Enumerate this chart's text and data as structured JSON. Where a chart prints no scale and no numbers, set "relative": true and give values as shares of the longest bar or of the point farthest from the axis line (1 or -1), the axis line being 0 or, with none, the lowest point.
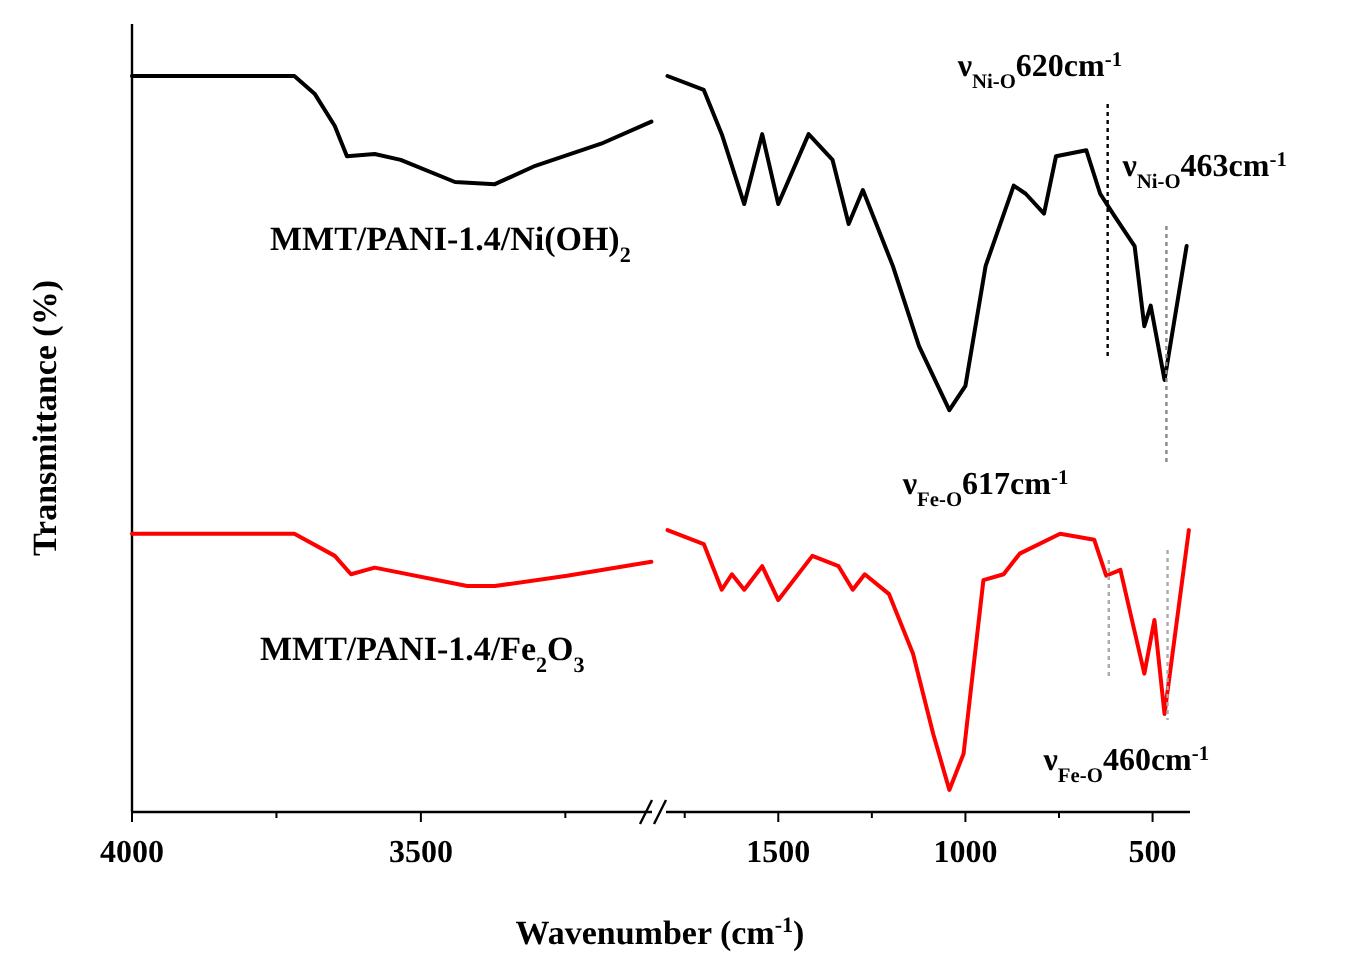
{
  "chart_data": [
    {
      "type": "line",
      "relative": true,
      "ylabel": "Transmittance (%)",
      "xlim": [
        4000,
        3100
      ],
      "xticks": [
        4000,
        3500,
        {
          "value": 3750,
          "label": null
        },
        {
          "value": 3250,
          "label": null
        }
      ],
      "series": [
        {
          "name": "MMT/PANI-1.4/Ni(OH)$_{2}$",
          "color": "#000000",
          "x": [
            4000,
            3850,
            3719,
            3684,
            3649,
            3628,
            3580,
            3535,
            3441,
            3372,
            3302,
            3188,
            3101
          ],
          "values": [
            1.0,
            1.0,
            1.0,
            0.976,
            0.932,
            0.891,
            0.894,
            0.886,
            0.856,
            0.853,
            0.878,
            0.908,
            0.938
          ]
        },
        {
          "name": "MMT/PANI-1.4/Fe$_{2}$O$_{3}$",
          "color": "#ff0000",
          "x": [
            4000,
            3850,
            3719,
            3649,
            3621,
            3580,
            3420,
            3372,
            3247,
            3101
          ],
          "values": [
            0.378,
            0.378,
            0.378,
            0.348,
            0.323,
            0.332,
            0.307,
            0.307,
            0.321,
            0.34
          ]
        }
      ]
    },
    {
      "type": "line",
      "relative": true,
      "xlabel": "Wavenumber (cm$^{-1}$)",
      "xlim": [
        1800,
        400
      ],
      "xticks": [
        1500,
        1000,
        500,
        {
          "value": 1750,
          "label": null
        },
        {
          "value": 1250,
          "label": null
        },
        {
          "value": 750,
          "label": null
        }
      ],
      "ref_lines": [
        {
          "axis": "x",
          "value": 620,
          "label": "ν$_{Ni-O}$620cm$^{-1}$",
          "color": "#000000",
          "line_style": "dotted"
        },
        {
          "axis": "x",
          "value": 463,
          "label": "ν$_{Ni-O}$463cm$^{-1}$",
          "color": "#888888",
          "line_style": "dotted"
        },
        {
          "axis": "x",
          "value": 617,
          "label": "ν$_{Fe-O}$617cm$^{-1}$",
          "color": "#aaaaaa",
          "line_style": "dotted"
        },
        {
          "axis": "x",
          "value": 460,
          "label": "ν$_{Fe-O}$460cm$^{-1}$",
          "color": "#aaaaaa",
          "line_style": "dotted"
        }
      ],
      "series": [
        {
          "color": "#000000",
          "x": [
            1796,
            1699,
            1651,
            1591,
            1543,
            1500,
            1419,
            1355,
            1312,
            1274,
            1194,
            1124,
            1043,
            1000,
            946,
            871,
            839,
            790,
            758,
            677,
            640,
            602,
            548,
            522,
            505,
            468,
            409
          ],
          "values": [
            1.0,
            0.981,
            0.921,
            0.826,
            0.921,
            0.826,
            0.921,
            0.886,
            0.799,
            0.845,
            0.742,
            0.633,
            0.546,
            0.579,
            0.742,
            0.851,
            0.84,
            0.813,
            0.891,
            0.899,
            0.84,
            0.81,
            0.769,
            0.66,
            0.688,
            0.587,
            0.769
          ]
        },
        {
          "color": "#ff0000",
          "x": [
            1796,
            1699,
            1651,
            1624,
            1591,
            1543,
            1500,
            1409,
            1339,
            1301,
            1269,
            1204,
            1140,
            1086,
            1043,
            1005,
            952,
            898,
            855,
            747,
            656,
            624,
            586,
            522,
            495,
            468,
            403
          ],
          "values": [
            0.383,
            0.364,
            0.302,
            0.323,
            0.302,
            0.334,
            0.288,
            0.348,
            0.334,
            0.302,
            0.323,
            0.296,
            0.215,
            0.106,
            0.03,
            0.079,
            0.315,
            0.323,
            0.351,
            0.378,
            0.37,
            0.321,
            0.329,
            0.188,
            0.261,
            0.133,
            0.383
          ]
        }
      ]
    }
  ]
}
